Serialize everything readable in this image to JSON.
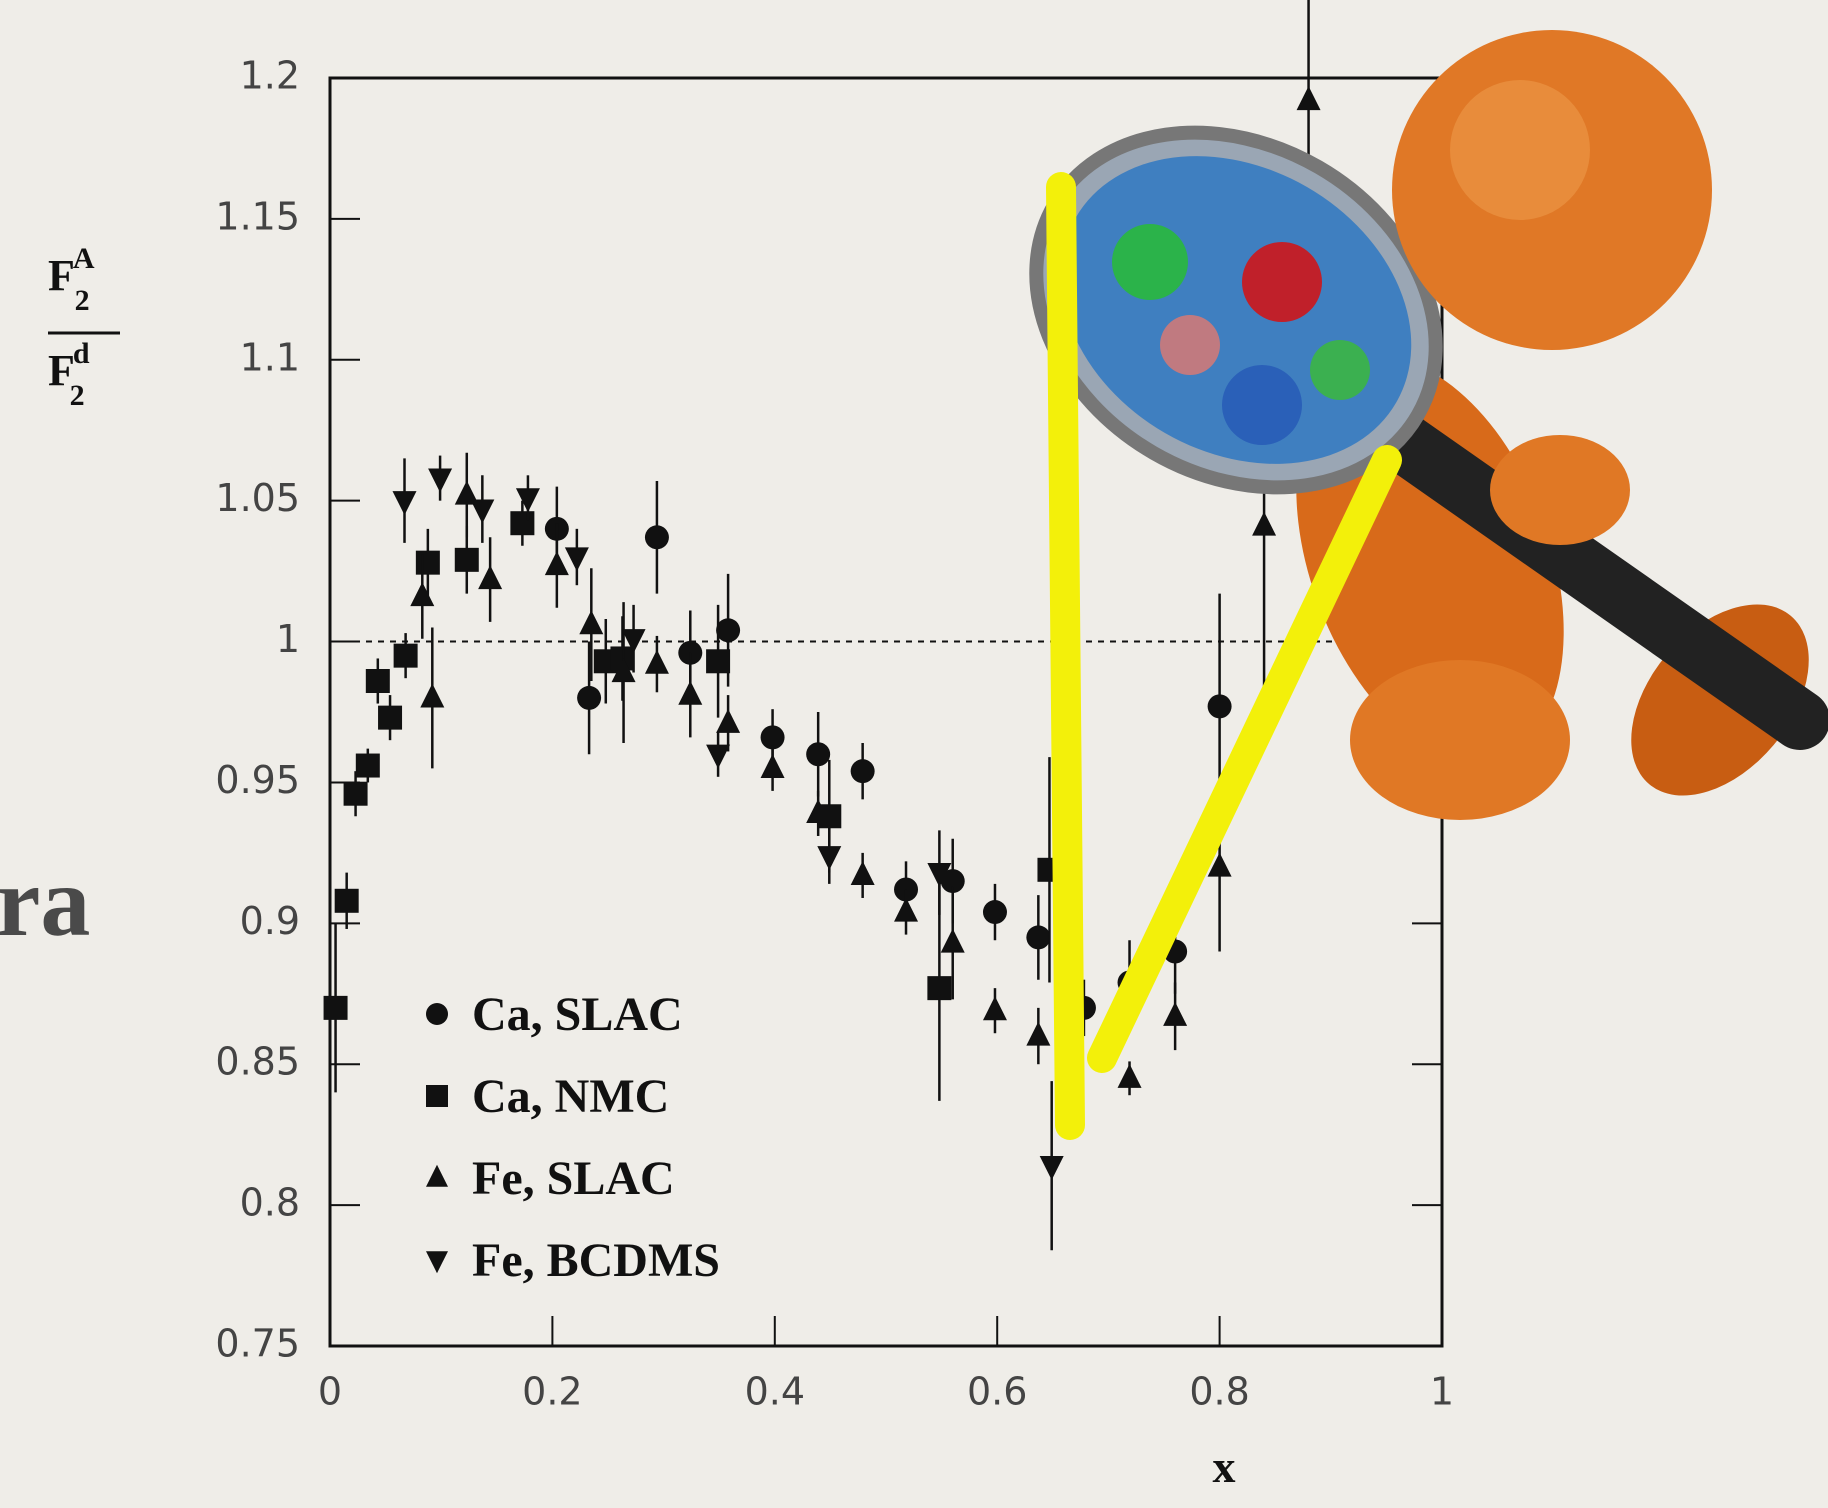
{
  "chart_data": {
    "type": "scatter",
    "side_text": "ra",
    "xlabel": "x",
    "ylabel": {
      "numerator": {
        "base": "F",
        "sub": "2",
        "sup": "A"
      },
      "denominator": {
        "base": "F",
        "sub": "2",
        "sup": "d"
      }
    },
    "xlim": [
      0,
      1
    ],
    "ylim": [
      0.75,
      1.2
    ],
    "xticks": [
      0,
      0.2,
      0.4,
      0.6,
      0.8,
      1
    ],
    "yticks": [
      0.75,
      0.8,
      0.85,
      0.9,
      0.95,
      1,
      1.05,
      1.1,
      1.15,
      1.2
    ],
    "reference_line": 1,
    "legend": "lower left",
    "series": [
      {
        "name": "Ca, SLAC",
        "marker": "circle",
        "color": "#111111",
        "x": [
          0.204,
          0.233,
          0.294,
          0.324,
          0.358,
          0.398,
          0.439,
          0.479,
          0.518,
          0.56,
          0.598,
          0.637,
          0.678,
          0.719,
          0.76,
          0.8
        ],
        "values": [
          1.04,
          0.98,
          1.037,
          0.996,
          1.004,
          0.966,
          0.96,
          0.954,
          0.912,
          0.915,
          0.904,
          0.895,
          0.87,
          0.879,
          0.89,
          0.977
        ],
        "errors": [
          0.015,
          0.02,
          0.02,
          0.015,
          0.02,
          0.01,
          0.015,
          0.01,
          0.01,
          0.015,
          0.01,
          0.015,
          0.01,
          0.015,
          0.015,
          0.04
        ]
      },
      {
        "name": "Ca, NMC",
        "marker": "square",
        "color": "#111111",
        "x": [
          0.005,
          0.015,
          0.023,
          0.034,
          0.043,
          0.054,
          0.068,
          0.088,
          0.123,
          0.173,
          0.248,
          0.263,
          0.349,
          0.449,
          0.548,
          0.647
        ],
        "values": [
          0.87,
          0.908,
          0.946,
          0.956,
          0.986,
          0.973,
          0.995,
          1.028,
          1.029,
          1.042,
          0.993,
          0.994,
          0.993,
          0.938,
          0.877,
          0.919
        ],
        "errors": [
          0.03,
          0.01,
          0.008,
          0.006,
          0.008,
          0.008,
          0.008,
          0.012,
          0.012,
          0.008,
          0.015,
          0.015,
          0.02,
          0.02,
          0.04,
          0.04
        ]
      },
      {
        "name": "Fe, SLAC",
        "marker": "triangle-up",
        "color": "#111111",
        "x": [
          0.083,
          0.092,
          0.123,
          0.144,
          0.204,
          0.235,
          0.264,
          0.294,
          0.324,
          0.358,
          0.398,
          0.439,
          0.479,
          0.518,
          0.56,
          0.598,
          0.637,
          0.719,
          0.76,
          0.8,
          0.84,
          0.88
        ],
        "values": [
          1.016,
          0.98,
          1.052,
          1.022,
          1.027,
          1.006,
          0.989,
          0.992,
          0.981,
          0.971,
          0.955,
          0.939,
          0.917,
          0.904,
          0.893,
          0.869,
          0.86,
          0.845,
          0.867,
          0.92,
          1.041,
          1.192
        ],
        "errors": [
          0.015,
          0.025,
          0.015,
          0.015,
          0.015,
          0.02,
          0.025,
          0.01,
          0.015,
          0.01,
          0.008,
          0.008,
          0.008,
          0.008,
          0.02,
          0.008,
          0.01,
          0.006,
          0.012,
          0.03,
          0.06,
          0.05
        ]
      },
      {
        "name": "Fe, BCDMS",
        "marker": "triangle-down",
        "color": "#111111",
        "x": [
          0.067,
          0.099,
          0.137,
          0.178,
          0.222,
          0.273,
          0.349,
          0.449,
          0.548,
          0.649
        ],
        "values": [
          1.05,
          1.058,
          1.047,
          1.051,
          1.03,
          1.001,
          0.96,
          0.924,
          0.918,
          0.814
        ],
        "errors": [
          0.015,
          0.008,
          0.012,
          0.008,
          0.01,
          0.012,
          0.008,
          0.01,
          0.015,
          0.03
        ]
      }
    ]
  }
}
